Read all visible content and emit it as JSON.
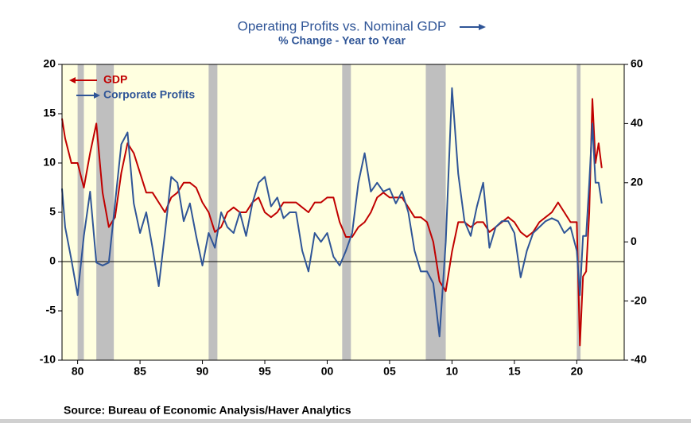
{
  "chart_data": {
    "type": "line",
    "title": "Operating Profits vs. Nominal GDP",
    "subtitle": "% Change - Year to Year",
    "source": "Source:  Bureau of Economic Analysis/Haver Analytics",
    "x": [
      1978.75,
      1979.0,
      1979.5,
      1980.0,
      1980.5,
      1981.0,
      1981.5,
      1982.0,
      1982.5,
      1983.0,
      1983.5,
      1984.0,
      1984.5,
      1985.0,
      1985.5,
      1986.0,
      1986.5,
      1987.0,
      1987.5,
      1988.0,
      1988.5,
      1989.0,
      1989.5,
      1990.0,
      1990.5,
      1991.0,
      1991.5,
      1992.0,
      1992.5,
      1993.0,
      1993.5,
      1994.0,
      1994.5,
      1995.0,
      1995.5,
      1996.0,
      1996.5,
      1997.0,
      1997.5,
      1998.0,
      1998.5,
      1999.0,
      1999.5,
      2000.0,
      2000.5,
      2001.0,
      2001.5,
      2002.0,
      2002.5,
      2003.0,
      2003.5,
      2004.0,
      2004.5,
      2005.0,
      2005.5,
      2006.0,
      2006.5,
      2007.0,
      2007.5,
      2008.0,
      2008.5,
      2009.0,
      2009.5,
      2010.0,
      2010.5,
      2011.0,
      2011.5,
      2012.0,
      2012.5,
      2013.0,
      2013.5,
      2014.0,
      2014.5,
      2015.0,
      2015.5,
      2016.0,
      2016.5,
      2017.0,
      2017.5,
      2018.0,
      2018.5,
      2019.0,
      2019.5,
      2020.0,
      2020.25,
      2020.5,
      2020.75,
      2021.0,
      2021.25,
      2021.5,
      2021.75,
      2022.0
    ],
    "series": [
      {
        "name": "GDP",
        "color": "#c00000",
        "axis": "y",
        "values": [
          14.5,
          12.5,
          10,
          10,
          7.5,
          11,
          14,
          7,
          3.5,
          4.5,
          9,
          12,
          11,
          9,
          7,
          7,
          6,
          5,
          6.5,
          7,
          8,
          8,
          7.5,
          6,
          5,
          3,
          3.5,
          5,
          5.5,
          5,
          5,
          6,
          6.5,
          5,
          4.5,
          5,
          6,
          6,
          6,
          5.5,
          5,
          6,
          6,
          6.5,
          6.5,
          4,
          2.5,
          2.5,
          3.5,
          4,
          5,
          6.5,
          7,
          6.5,
          6.5,
          6.5,
          5.5,
          4.5,
          4.5,
          4,
          2,
          -2,
          -3,
          1,
          4,
          4,
          3.5,
          4,
          4,
          3,
          3.5,
          4,
          4.5,
          4,
          3,
          2.5,
          3,
          4,
          4.5,
          5,
          6,
          5,
          4,
          4,
          -8.5,
          -1.5,
          -1,
          5,
          16.5,
          10,
          12,
          9.5
        ]
      },
      {
        "name": "Corporate Profits",
        "color": "#2f5597",
        "axis": "y2",
        "values": [
          18,
          5,
          -6,
          -18,
          2,
          17,
          -7,
          -8,
          -7,
          13,
          33,
          37,
          13,
          3,
          10,
          -2,
          -15,
          3,
          22,
          20,
          7,
          13,
          2,
          -8,
          3,
          -2,
          10,
          5,
          3,
          10,
          2,
          13,
          20,
          22,
          12,
          15,
          8,
          10,
          10,
          -3,
          -10,
          3,
          0,
          3,
          -5,
          -8,
          -3,
          3,
          20,
          30,
          17,
          20,
          17,
          18,
          13,
          17,
          10,
          -3,
          -10,
          -10,
          -14,
          -32,
          0,
          52,
          23,
          7,
          2,
          12,
          20,
          -2,
          5,
          7,
          7,
          3,
          -12,
          -3,
          3,
          5,
          7,
          8,
          7,
          3,
          5,
          -3,
          -18,
          2,
          2,
          20,
          40,
          20,
          20,
          13
        ]
      }
    ],
    "shaded_periods": [
      [
        1980.0,
        1980.5
      ],
      [
        1981.5,
        1982.9
      ],
      [
        1990.5,
        1991.2
      ],
      [
        2001.2,
        2001.9
      ],
      [
        2007.9,
        2009.5
      ],
      [
        2020.0,
        2020.3
      ]
    ],
    "xlim": [
      1978.75,
      2023.8
    ],
    "xticks": [
      {
        "value": 1980,
        "label": "80"
      },
      {
        "value": 1985,
        "label": "85"
      },
      {
        "value": 1990,
        "label": "90"
      },
      {
        "value": 1995,
        "label": "95"
      },
      {
        "value": 2000,
        "label": "00"
      },
      {
        "value": 2005,
        "label": "05"
      },
      {
        "value": 2010,
        "label": "10"
      },
      {
        "value": 2015,
        "label": "15"
      },
      {
        "value": 2020,
        "label": "20"
      }
    ],
    "ylim": [
      -10,
      20
    ],
    "yticks": [
      -10,
      -5,
      0,
      5,
      10,
      15,
      20
    ],
    "y2lim": [
      -40,
      60
    ],
    "y2ticks": [
      -40,
      -20,
      0,
      20,
      40,
      60
    ]
  }
}
